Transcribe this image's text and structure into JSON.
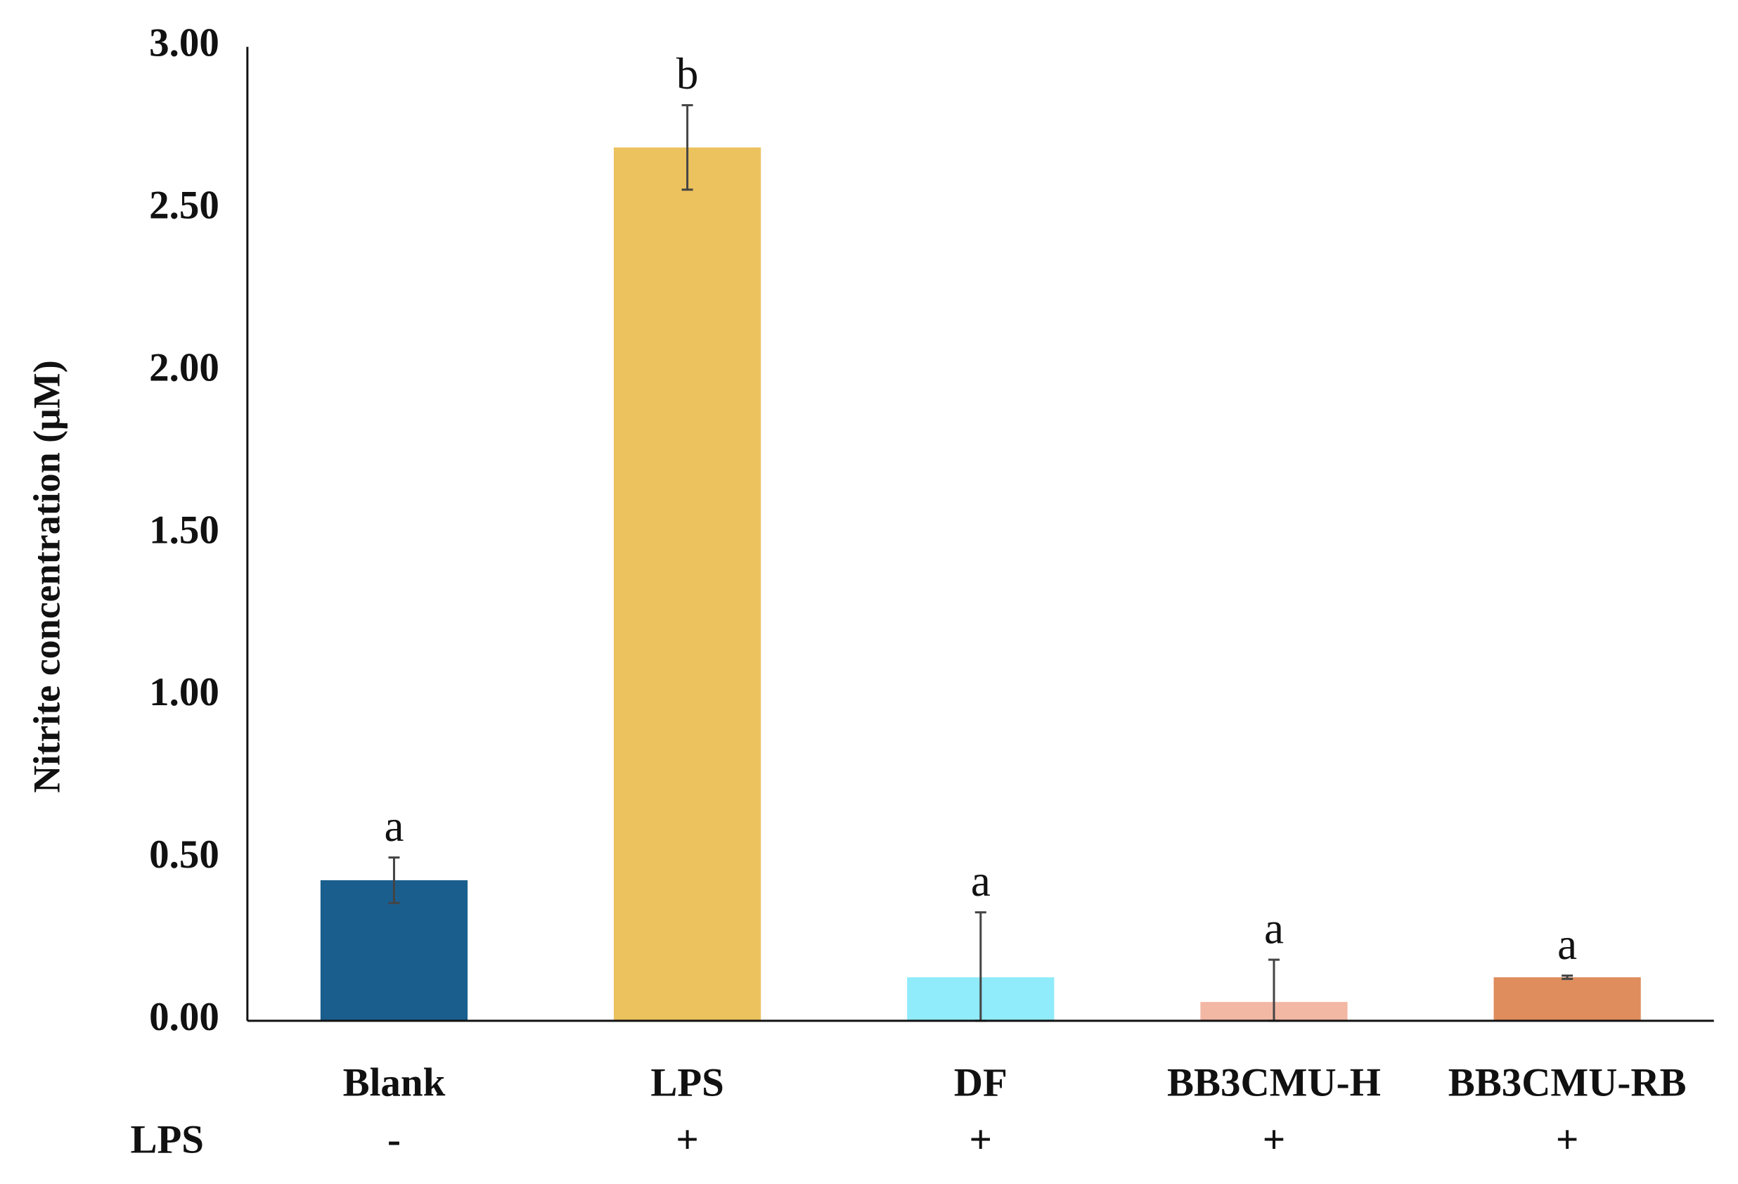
{
  "chart_data": {
    "type": "bar",
    "y_label": "Nitrite concentration (μM)",
    "categories": [
      "Blank",
      "LPS",
      "DF",
      "BB3CMU-H",
      "BB3CMU-RB"
    ],
    "values": [
      0.433,
      2.69,
      0.134,
      0.058,
      0.134
    ],
    "errors": [
      0.07,
      0.13,
      0.2,
      0.13,
      0.005
    ],
    "colors": [
      "#1a5e8e",
      "#ecc25e",
      "#90ebfb",
      "#f2b8a4",
      "#df8d5d"
    ],
    "annotations": [
      "a",
      "b",
      "a",
      "a",
      "a"
    ],
    "row_label": "LPS",
    "row_values": [
      "-",
      "+",
      "+",
      "+",
      "+"
    ],
    "ylim": [
      0,
      3
    ],
    "yticks": [
      {
        "value": 0,
        "label": "0.00"
      },
      {
        "value": 0.5,
        "label": "0.50"
      },
      {
        "value": 1,
        "label": "1.00"
      },
      {
        "value": 1.5,
        "label": "1.50"
      },
      {
        "value": 2,
        "label": "2.00"
      },
      {
        "value": 2.5,
        "label": "2.50"
      },
      {
        "value": 3,
        "label": "3.00"
      }
    ],
    "grid": false
  }
}
